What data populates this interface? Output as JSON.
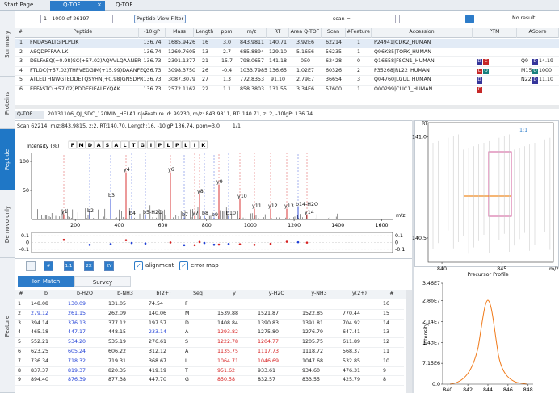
{
  "tabs": [
    "Start Page",
    "Q-TOF",
    "Q-TOF"
  ],
  "sidebar": [
    "Summary",
    "Proteins",
    "Peptide",
    "De novo only",
    "Feature"
  ],
  "toolbar": {
    "range": "1 - 1000 of 26197",
    "filter_button": "Peptide View Filter",
    "search_field": "scan =",
    "search_status": "No result"
  },
  "peptide_table": {
    "columns": [
      "#",
      "Peptide",
      "-10lgP",
      "Mass",
      "Length",
      "ppm",
      "m/z",
      "RT",
      "Area Q-TOF",
      "Scan",
      "#Feature",
      "Accession",
      "PTM",
      "AScore"
    ],
    "rows": [
      [
        "1",
        "FMDASALTGIPLPLIK",
        "136.74",
        "1685.9426",
        "16",
        "3.0",
        "843.9811",
        "140.71",
        "3.92E6",
        "62214",
        "1",
        "P24941|CDK2_HUMAN"
      ],
      [
        "2",
        "ASQDPFPAAILK",
        "136.74",
        "1269.7605",
        "13",
        "2.7",
        "685.8894",
        "129.10",
        "5.16E6",
        "56235",
        "1",
        "Q96K85|TOPK_HUMAN"
      ],
      [
        "3",
        "DELFAEQ(+0.98)SC(+57.02)AQVVLQAANER",
        "136.73",
        "2391.1377",
        "21",
        "15.7",
        "798.0657",
        "141.18",
        "0E0",
        "62428",
        "0",
        "Q16658|FSCN1_HUMAN"
      ],
      [
        "4",
        "FTLDC(+57.02)THPVEDGIM(+15.99)DAANFEQ",
        "136.73",
        "3098.3750",
        "26",
        "-0.4",
        "1033.7985",
        "136.65",
        "1.02E7",
        "60326",
        "2",
        "P35268|RL22_HUMAN"
      ],
      [
        "5",
        "ATLELTHNWGTEDDETQSYHN(+0.98)GNSDPR",
        "136.73",
        "3087.3079",
        "27",
        "1.3",
        "772.8353",
        "91.10",
        "2.79E7",
        "36654",
        "3",
        "Q04760|LGUL_HUMAN"
      ],
      [
        "6",
        "EEFASTC(+57.02)PDDEEIEALEYQAK",
        "136.73",
        "2572.1162",
        "22",
        "1.1",
        "858.3803",
        "131.55",
        "3.34E6",
        "57600",
        "1",
        "O00299|CLIC1_HUMAN"
      ]
    ],
    "ptm": [
      [],
      [],
      [
        "D",
        "C"
      ],
      [
        "C",
        "O"
      ],
      [
        "D"
      ],
      [
        "C"
      ]
    ],
    "ascore": [
      null,
      null,
      {
        "site": "Q9",
        "mod": "D",
        "score": "14.19"
      },
      {
        "site": "M15",
        "mod": "O",
        "score": "1000"
      },
      {
        "site": "N22",
        "mod": "D",
        "score": "11.10"
      },
      null
    ],
    "ptm_colors": {
      "D": "#34349a",
      "C": "#c62828",
      "O": "#17807e"
    }
  },
  "panel": {
    "tab": "Q-TOF",
    "file": "20131106_QJ_SDC_120MIN_HELA1.raw",
    "feature": "Feature Id: 99230, m/z: 843.9811, RT: 140.71, z: 2, -10lgP: 136.74"
  },
  "spectrum": {
    "info": "Scan 62214, m/z:843.9815, z:2, RT:140.70, Length:16, -10lgP:136.74, ppm=3.0",
    "page": "1/1",
    "y_label": "Intensity (%)",
    "x_label": "m/z",
    "sequence": [
      "F",
      "M",
      "D",
      "A",
      "S",
      "A",
      "L",
      "T",
      "G",
      "I",
      "P",
      "L",
      "P",
      "L",
      "I",
      "K"
    ],
    "xlim": [
      0,
      1650
    ],
    "ylim": [
      0,
      100
    ],
    "xticks": [
      200,
      400,
      600,
      800,
      1000,
      1200,
      1400,
      1600
    ],
    "yticks": [
      50,
      100
    ],
    "ion_labels": [
      "y4",
      "y6",
      "y9",
      "b3",
      "y8",
      "y10",
      "y11",
      "y12",
      "y13",
      "b14-H2O",
      "y14",
      "y1",
      "b2",
      "b4",
      "b5-H2O",
      "b7",
      "y7",
      "b8",
      "b9",
      "b10"
    ],
    "ion_colors": {
      "b": "#1f3fd6",
      "y": "#d62020"
    }
  },
  "error_plot": {
    "ylim": [
      -0.15,
      0.15
    ],
    "yticks": [
      0.1,
      0,
      -0.1
    ]
  },
  "controls": {
    "buttons": [
      "#",
      "1:1",
      "2X",
      "2Y"
    ],
    "checkboxes": [
      "alignment",
      "error map"
    ]
  },
  "ion_tabs": [
    "Ion Match",
    "Survey"
  ],
  "ion_table": {
    "columns": [
      "#",
      "b",
      "b-H2O",
      "b-NH3",
      "b(2+)",
      "Seq",
      "y",
      "y-H2O",
      "y-NH3",
      "y(2+)",
      "#"
    ],
    "rows": [
      [
        "1",
        "148.08",
        "130.09",
        "131.05",
        "74.54",
        "F",
        null,
        null,
        null,
        null,
        "16"
      ],
      [
        "2",
        "279.12",
        "261.15",
        "262.09",
        "140.06",
        "M",
        "1539.88",
        "1521.87",
        "1522.85",
        "770.44",
        "15"
      ],
      [
        "3",
        "394.14",
        "376.13",
        "377.12",
        "197.57",
        "D",
        "1408.84",
        "1390.83",
        "1391.81",
        "704.92",
        "14"
      ],
      [
        "4",
        "465.18",
        "447.17",
        "448.15",
        "233.14",
        "A",
        "1293.82",
        "1275.80",
        "1276.79",
        "647.41",
        "13"
      ],
      [
        "5",
        "552.21",
        "534.20",
        "535.19",
        "276.61",
        "S",
        "1222.78",
        "1204.77",
        "1205.75",
        "611.89",
        "12"
      ],
      [
        "6",
        "623.25",
        "605.24",
        "606.22",
        "312.12",
        "A",
        "1135.75",
        "1117.73",
        "1118.72",
        "568.37",
        "11"
      ],
      [
        "7",
        "736.34",
        "718.32",
        "719.31",
        "368.67",
        "L",
        "1064.71",
        "1046.69",
        "1047.68",
        "532.85",
        "10"
      ],
      [
        "8",
        "837.37",
        "819.37",
        "820.35",
        "419.19",
        "T",
        "951.62",
        "933.61",
        "934.60",
        "476.31",
        "9"
      ],
      [
        "9",
        "894.40",
        "876.39",
        "877.38",
        "447.70",
        "G",
        "850.58",
        "832.57",
        "833.55",
        "425.79",
        "8"
      ]
    ],
    "highlighted_columns": [
      [
        2
      ],
      [
        1,
        2
      ],
      [
        2
      ],
      [
        2,
        4,
        6
      ],
      [
        2,
        6,
        7
      ],
      [
        2,
        6,
        7
      ],
      [
        2,
        6,
        7
      ],
      [
        2,
        6
      ],
      [
        2,
        6
      ]
    ],
    "b_color": "#1f3fd6",
    "y_color": "#d62020"
  },
  "rt_map": {
    "y_label": "RT",
    "x_label": "m/z",
    "zoom": "1:1",
    "xlim": [
      838.85,
      849.3
    ],
    "xticks": [
      840,
      845
    ],
    "ylim": [
      140.38,
      141.07
    ],
    "yticks": [
      {
        "value": 141,
        "label": "141.0"
      },
      {
        "value": 140.5,
        "label": "140.5"
      }
    ]
  },
  "precursor_profile": {
    "title": "Precursor Profile",
    "y_label": "Intensity",
    "xlim": [
      839.5,
      848.5
    ],
    "xticks": [
      840,
      842,
      844,
      846,
      848
    ],
    "ylim": [
      0,
      34600000
    ],
    "yticks": [
      {
        "value": 0,
        "label": "0.0"
      },
      {
        "value": 7150000,
        "label": "7.15E6"
      },
      {
        "value": 14300000,
        "label": "1.43E7"
      },
      {
        "value": 21450000,
        "label": "2.14E7"
      },
      {
        "value": 28600000,
        "label": "2.86E7"
      },
      {
        "value": 34600000,
        "label": "3.46E7"
      }
    ]
  }
}
